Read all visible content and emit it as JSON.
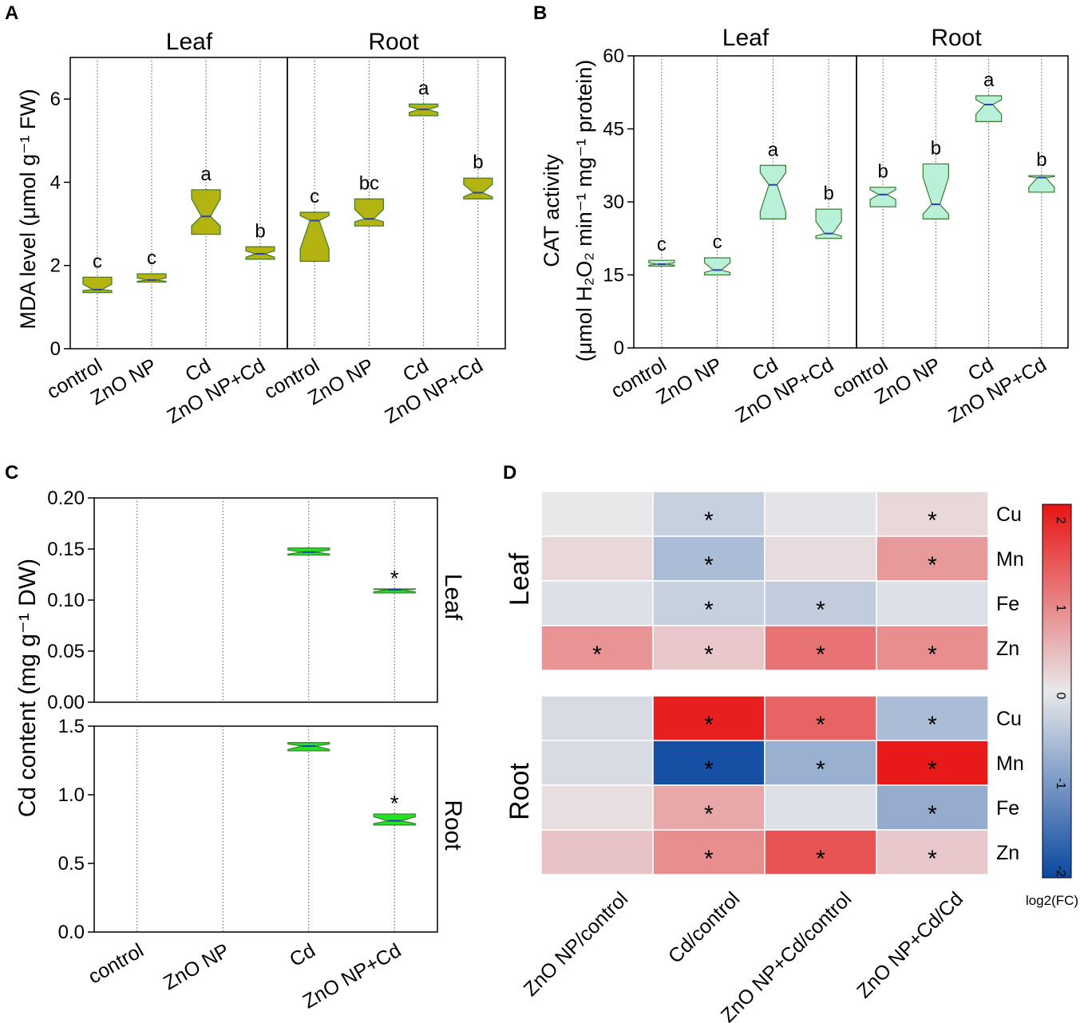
{
  "colors": {
    "mda": "#b3b312",
    "cat": "#b9f0d8",
    "cd": "#22e422",
    "median_line": "#2a3bb8"
  },
  "chart_data": [
    {
      "panel": "A",
      "type": "violin",
      "facets": [
        "Leaf",
        "Root"
      ],
      "categories": [
        "control",
        "ZnO NP",
        "Cd",
        "ZnO NP+Cd"
      ],
      "ylabel": "MDA level (μmol g⁻¹ FW)",
      "ylim": [
        0,
        7
      ],
      "yticks": [
        0,
        2,
        4,
        6
      ],
      "series": [
        {
          "name": "Leaf",
          "violins": [
            {
              "min": 1.35,
              "q1": 1.4,
              "median": 1.42,
              "q3": 1.55,
              "max": 1.72,
              "letter": "c"
            },
            {
              "min": 1.6,
              "q1": 1.62,
              "median": 1.65,
              "q3": 1.7,
              "max": 1.8,
              "letter": "c"
            },
            {
              "min": 2.75,
              "q1": 2.95,
              "median": 3.18,
              "q3": 3.6,
              "max": 3.82,
              "letter": "a"
            },
            {
              "min": 2.15,
              "q1": 2.2,
              "median": 2.28,
              "q3": 2.35,
              "max": 2.45,
              "letter": "b"
            }
          ]
        },
        {
          "name": "Root",
          "violins": [
            {
              "min": 2.1,
              "q1": 2.4,
              "median": 3.08,
              "q3": 3.2,
              "max": 3.28,
              "letter": "c"
            },
            {
              "min": 2.95,
              "q1": 3.05,
              "median": 3.12,
              "q3": 3.35,
              "max": 3.6,
              "letter": "bc"
            },
            {
              "min": 5.6,
              "q1": 5.68,
              "median": 5.75,
              "q3": 5.82,
              "max": 5.88,
              "letter": "a"
            },
            {
              "min": 3.6,
              "q1": 3.65,
              "median": 3.75,
              "q3": 3.95,
              "max": 4.1,
              "letter": "b"
            }
          ]
        }
      ]
    },
    {
      "panel": "B",
      "type": "violin",
      "facets": [
        "Leaf",
        "Root"
      ],
      "categories": [
        "control",
        "ZnO NP",
        "Cd",
        "ZnO NP+Cd"
      ],
      "ylabel_line1": "CAT activity",
      "ylabel_line2": "(μmol H₂O₂ min⁻¹ mg⁻¹ protein)",
      "ylim": [
        0,
        60
      ],
      "yticks": [
        0,
        15,
        30,
        45,
        60
      ],
      "series": [
        {
          "name": "Leaf",
          "violins": [
            {
              "min": 16.8,
              "q1": 17,
              "median": 17.2,
              "q3": 17.5,
              "max": 18,
              "letter": "c"
            },
            {
              "min": 15,
              "q1": 15.5,
              "median": 16,
              "q3": 17.5,
              "max": 18.5,
              "letter": "c"
            },
            {
              "min": 26.5,
              "q1": 28,
              "median": 33.5,
              "q3": 36,
              "max": 37.5,
              "letter": "a"
            },
            {
              "min": 22.5,
              "q1": 23,
              "median": 23.5,
              "q3": 26,
              "max": 28.5,
              "letter": "b"
            }
          ]
        },
        {
          "name": "Root",
          "violins": [
            {
              "min": 29,
              "q1": 30.5,
              "median": 31.5,
              "q3": 32.5,
              "max": 33,
              "letter": "b"
            },
            {
              "min": 26.5,
              "q1": 27.5,
              "median": 29.5,
              "q3": 35,
              "max": 37.8,
              "letter": "b"
            },
            {
              "min": 46.5,
              "q1": 48,
              "median": 50,
              "q3": 51,
              "max": 51.8,
              "letter": "a"
            },
            {
              "min": 32,
              "q1": 33,
              "median": 35,
              "q3": 35.2,
              "max": 35.4,
              "letter": "b"
            }
          ]
        }
      ]
    },
    {
      "panel": "C",
      "type": "violin",
      "facets": [
        "Leaf",
        "Root"
      ],
      "categories": [
        "control",
        "ZnO NP",
        "Cd",
        "ZnO NP+Cd"
      ],
      "ylabel": "Cd content (mg g⁻¹ DW)",
      "series": [
        {
          "name": "Leaf",
          "ylim": [
            0,
            0.2
          ],
          "yticks": [
            "0.00",
            "0.05",
            "0.10",
            "0.15",
            "0.20"
          ],
          "violins": [
            null,
            null,
            {
              "min": 0.144,
              "q1": 0.145,
              "median": 0.147,
              "q3": 0.149,
              "max": 0.151,
              "mark": ""
            },
            {
              "min": 0.107,
              "q1": 0.108,
              "median": 0.11,
              "q3": 0.1105,
              "max": 0.111,
              "mark": "*"
            }
          ]
        },
        {
          "name": "Root",
          "ylim": [
            0,
            1.5
          ],
          "yticks": [
            "0.0",
            "0.5",
            "1.0",
            "1.5"
          ],
          "violins": [
            null,
            null,
            {
              "min": 1.32,
              "q1": 1.33,
              "median": 1.355,
              "q3": 1.37,
              "max": 1.38,
              "mark": ""
            },
            {
              "min": 0.78,
              "q1": 0.79,
              "median": 0.81,
              "q3": 0.84,
              "max": 0.86,
              "mark": "*"
            }
          ]
        }
      ]
    },
    {
      "panel": "D",
      "type": "heatmap",
      "columns": [
        "ZnO NP/control",
        "Cd/control",
        "ZnO NP+Cd/control",
        "ZnO NP+Cd/Cd"
      ],
      "groups": [
        {
          "name": "Leaf",
          "rows": [
            "Cu",
            "Mn",
            "Fe",
            "Zn"
          ],
          "values": [
            [
              0.0,
              -0.3,
              -0.05,
              0.15
            ],
            [
              0.15,
              -0.55,
              0.12,
              0.75
            ],
            [
              -0.1,
              -0.3,
              -0.35,
              -0.1
            ],
            [
              0.8,
              0.3,
              1.1,
              0.85
            ]
          ],
          "stars": [
            [
              false,
              true,
              false,
              true
            ],
            [
              false,
              true,
              false,
              true
            ],
            [
              false,
              true,
              true,
              false
            ],
            [
              true,
              true,
              true,
              true
            ]
          ]
        },
        {
          "name": "Root",
          "rows": [
            "Cu",
            "Mn",
            "Fe",
            "Zn"
          ],
          "values": [
            [
              -0.15,
              1.9,
              1.25,
              -0.55
            ],
            [
              -0.15,
              -1.9,
              -0.7,
              1.95
            ],
            [
              0.1,
              0.6,
              -0.1,
              -0.75
            ],
            [
              0.35,
              0.85,
              1.4,
              0.3
            ]
          ],
          "stars": [
            [
              false,
              true,
              true,
              true
            ],
            [
              false,
              true,
              true,
              true
            ],
            [
              false,
              true,
              false,
              true
            ],
            [
              false,
              true,
              true,
              true
            ]
          ]
        }
      ],
      "colorbar": {
        "label": "log2(FC)",
        "min": -2,
        "max": 2,
        "ticks": [
          "2",
          "1",
          "0",
          "-1",
          "-2"
        ]
      }
    }
  ]
}
